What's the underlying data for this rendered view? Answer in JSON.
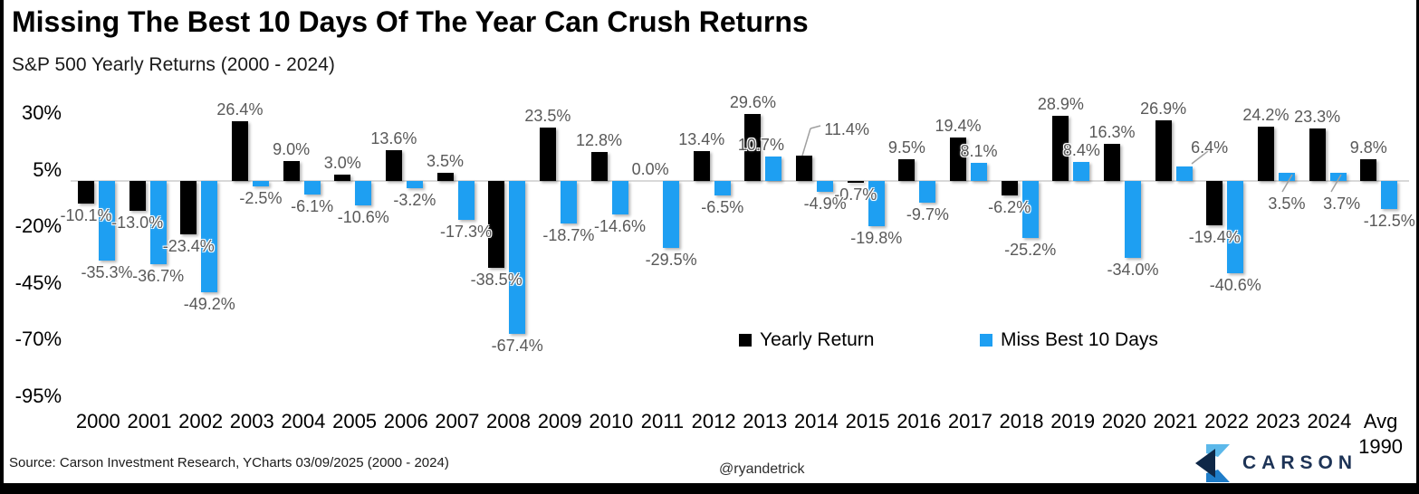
{
  "title": "Missing The Best 10 Days Of The Year Can Crush Returns",
  "subtitle": "S&P 500 Yearly Returns (2000 - 2024)",
  "legend": {
    "items": [
      {
        "label": "Yearly Return",
        "color": "#000000"
      },
      {
        "label": "Miss Best 10 Days",
        "color": "#1E9FF2"
      }
    ]
  },
  "footer": {
    "source": "Source: Carson Investment Research, YCharts 03/09/2025 (2000 - 2024)",
    "handle": "@ryandetrick",
    "brand": "CARSON"
  },
  "chart_data": {
    "type": "bar",
    "title": "Missing The Best 10 Days Of The Year Can Crush Returns",
    "subtitle": "S&P 500 Yearly Returns (2000 - 2024)",
    "categories": [
      "2000",
      "2001",
      "2002",
      "2003",
      "2004",
      "2005",
      "2006",
      "2007",
      "2008",
      "2009",
      "2010",
      "2011",
      "2012",
      "2013",
      "2014",
      "2015",
      "2016",
      "2017",
      "2018",
      "2019",
      "2020",
      "2021",
      "2022",
      "2023",
      "2024",
      "Avg"
    ],
    "avg_sublabel": "1990",
    "series": [
      {
        "name": "Yearly Return",
        "color": "#000000",
        "values": [
          -10.1,
          -13.0,
          -23.4,
          26.4,
          9.0,
          3.0,
          13.6,
          3.5,
          -38.5,
          23.5,
          12.8,
          0.0,
          13.4,
          29.6,
          11.4,
          -0.7,
          9.5,
          19.4,
          -6.2,
          28.9,
          16.3,
          26.9,
          -19.4,
          24.2,
          23.3,
          9.8
        ],
        "labels": [
          "-10.1%",
          "-13.0%",
          "-23.4%",
          "26.4%",
          "9.0%",
          "3.0%",
          "13.6%",
          "3.5%",
          "-38.5%",
          "23.5%",
          "12.8%",
          "0.0%",
          "13.4%",
          "29.6%",
          "11.4%",
          "-0.7%",
          "9.5%",
          "19.4%",
          "-6.2%",
          "28.9%",
          "16.3%",
          "26.9%",
          "-19.4%",
          "24.2%",
          "23.3%",
          "9.8%"
        ]
      },
      {
        "name": "Miss Best 10 Days",
        "color": "#1E9FF2",
        "values": [
          -35.3,
          -36.7,
          -49.2,
          -2.5,
          -6.1,
          -10.6,
          -3.2,
          -17.3,
          -67.4,
          -18.7,
          -14.6,
          -29.5,
          -6.5,
          10.7,
          -4.9,
          -19.8,
          -9.7,
          8.1,
          -25.2,
          8.4,
          -34.0,
          6.4,
          -40.6,
          3.5,
          3.7,
          -12.5
        ],
        "labels": [
          "-35.3%",
          "-36.7%",
          "-49.2%",
          "-2.5%",
          "-6.1%",
          "-10.6%",
          "-3.2%",
          "-17.3%",
          "-67.4%",
          "-18.7%",
          "-14.6%",
          "-29.5%",
          "-6.5%",
          "10.7%",
          "-4.9%",
          "-19.8%",
          "-9.7%",
          "8.1%",
          "-25.2%",
          "8.4%",
          "-34.0%",
          "6.4%",
          "-40.6%",
          "3.5%",
          "3.7%",
          "-12.5%"
        ]
      }
    ],
    "yticks": [
      {
        "label": "30%",
        "value": 30
      },
      {
        "label": "5%",
        "value": 5
      },
      {
        "label": "-20%",
        "value": -20
      },
      {
        "label": "-45%",
        "value": -45
      },
      {
        "label": "-70%",
        "value": -70
      },
      {
        "label": "-95%",
        "value": -95
      }
    ],
    "ylim": [
      -100,
      35
    ],
    "grid": "zero-line-only",
    "legend_position": "inside-bottom-center"
  },
  "layout_hints": {
    "label_overrides": {
      "0": {
        "14": {
          "dx": 47,
          "dy": -16
        }
      },
      "1": {
        "13": {
          "dx": -14,
          "dy": 0
        },
        "21": {
          "dx": 28,
          "dy": -8
        },
        "23": {
          "dx": 0,
          "dy": 47
        },
        "24": {
          "dx": 4,
          "dy": 47
        }
      }
    },
    "leader_lines": [
      [
        886,
        172,
        895,
        142
      ],
      [
        895,
        142,
        906,
        139
      ],
      [
        1316,
        181,
        1334,
        167
      ],
      [
        1416,
        212,
        1427,
        193
      ],
      [
        1470,
        212,
        1481,
        193
      ]
    ]
  }
}
